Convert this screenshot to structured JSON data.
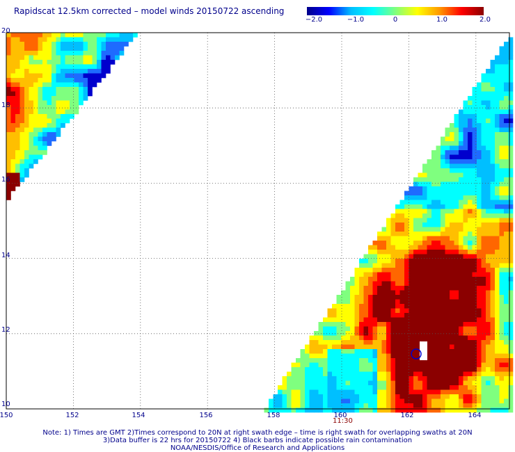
{
  "title": "Rapidscat 12.5km corrected – model winds 20150722 ascending",
  "colorbar": {
    "ticks": [
      "−2.0",
      "−1.0",
      "0",
      "1.0",
      "2.0"
    ],
    "range": [
      -2.0,
      2.0
    ],
    "colors": [
      "#00008b",
      "#0000ff",
      "#00bfff",
      "#00ffff",
      "#7fff7f",
      "#ffff00",
      "#ff9900",
      "#ff0000",
      "#8b0000"
    ]
  },
  "map": {
    "lat_range": [
      10,
      20
    ],
    "lon_range": [
      150,
      165
    ],
    "lat_labels": [
      "20",
      "18",
      "16",
      "14",
      "12",
      "10"
    ],
    "lon_labels": [
      "150",
      "152",
      "154",
      "156",
      "158",
      "160",
      "162",
      "164"
    ],
    "swath_time": "11:30",
    "gridlines": "dotted"
  },
  "notes": [
    "Note: 1) Times are GMT 2)Times correspond to 20N at right swath edge – time is right swath for overlapping swaths at 20N",
    "3)Data buffer is 22 hrs for 20150722 4) Black barbs indicate possible rain contamination",
    "NOAA/NESDIS/Office of Research and Applications"
  ]
}
